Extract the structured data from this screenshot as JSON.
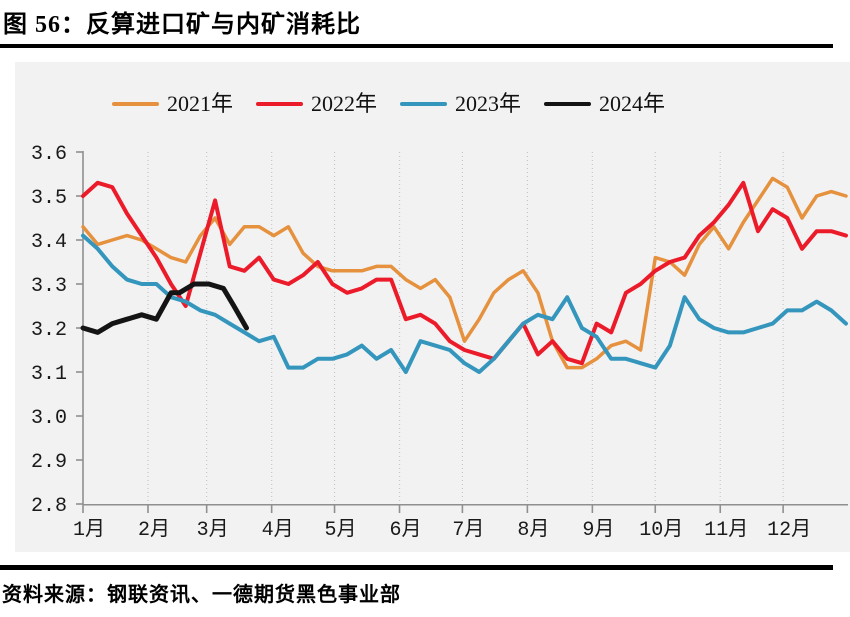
{
  "figure": {
    "title": "图 56：反算进口矿与内矿消耗比",
    "source": "资料来源：钢联资讯、一德期货黑色事业部"
  },
  "chart_data": {
    "type": "line",
    "title": "反算进口矿与内矿消耗比",
    "xlabel": "",
    "ylabel": "",
    "ylim": [
      2.8,
      3.6
    ],
    "y_ticks": [
      "3.6",
      "3.5",
      "3.4",
      "3.3",
      "3.2",
      "3.1",
      "3.0",
      "2.9",
      "2.8"
    ],
    "x_tick_labels": [
      "1月",
      "2月",
      "3月",
      "4月",
      "5月",
      "6月",
      "7月",
      "8月",
      "9月",
      "10月",
      "11月",
      "12月"
    ],
    "month_start_days": [
      0,
      31,
      59,
      90,
      120,
      151,
      181,
      212,
      243,
      273,
      304,
      334
    ],
    "x_range_days": [
      0,
      365
    ],
    "grid": "vertical-dotted",
    "legend_position": "top",
    "layout": {
      "panel_bg": "#f2f2f3",
      "axis_color": "#8f8f8f",
      "grid_color": "#c6c6c6",
      "tick_text_color": "#1a1a1a"
    },
    "series": [
      {
        "name": "2021年",
        "color": "#E5913E",
        "width": 3.5,
        "step_days": 7,
        "values": [
          3.43,
          3.39,
          3.4,
          3.41,
          3.4,
          3.38,
          3.36,
          3.35,
          3.41,
          3.45,
          3.39,
          3.43,
          3.43,
          3.41,
          3.43,
          3.37,
          3.34,
          3.33,
          3.33,
          3.33,
          3.34,
          3.34,
          3.31,
          3.29,
          3.31,
          3.27,
          3.17,
          3.22,
          3.28,
          3.31,
          3.33,
          3.28,
          3.17,
          3.11,
          3.11,
          3.13,
          3.16,
          3.17,
          3.15,
          3.36,
          3.35,
          3.32,
          3.39,
          3.43,
          3.38,
          3.44,
          3.49,
          3.54,
          3.52,
          3.45,
          3.5,
          3.51,
          3.5
        ]
      },
      {
        "name": "2022年",
        "color": "#EC1B2A",
        "width": 4,
        "step_days": 7,
        "values": [
          3.5,
          3.53,
          3.52,
          3.46,
          3.41,
          3.36,
          3.3,
          3.25,
          3.37,
          3.49,
          3.34,
          3.33,
          3.36,
          3.31,
          3.3,
          3.32,
          3.35,
          3.3,
          3.28,
          3.29,
          3.31,
          3.31,
          3.22,
          3.23,
          3.21,
          3.17,
          3.15,
          3.14,
          3.13,
          3.17,
          3.21,
          3.14,
          3.17,
          3.13,
          3.12,
          3.21,
          3.19,
          3.28,
          3.3,
          3.33,
          3.35,
          3.36,
          3.41,
          3.44,
          3.48,
          3.53,
          3.42,
          3.47,
          3.45,
          3.38,
          3.42,
          3.42,
          3.41
        ]
      },
      {
        "name": "2023年",
        "color": "#3496BC",
        "width": 4,
        "step_days": 7,
        "values": [
          3.41,
          3.38,
          3.34,
          3.31,
          3.3,
          3.3,
          3.27,
          3.26,
          3.24,
          3.23,
          3.21,
          3.19,
          3.17,
          3.18,
          3.11,
          3.11,
          3.13,
          3.13,
          3.14,
          3.16,
          3.13,
          3.15,
          3.1,
          3.17,
          3.16,
          3.15,
          3.12,
          3.1,
          3.13,
          3.17,
          3.21,
          3.23,
          3.22,
          3.27,
          3.2,
          3.18,
          3.13,
          3.13,
          3.12,
          3.11,
          3.16,
          3.27,
          3.22,
          3.2,
          3.19,
          3.19,
          3.2,
          3.21,
          3.24,
          3.24,
          3.26,
          3.24,
          3.21
        ]
      },
      {
        "name": "2024年",
        "color": "#141414",
        "width": 5,
        "days": [
          0,
          7,
          14,
          21,
          28,
          35,
          42,
          46,
          53,
          60,
          67,
          72,
          78
        ],
        "values": [
          3.2,
          3.19,
          3.21,
          3.22,
          3.23,
          3.22,
          3.28,
          3.28,
          3.3,
          3.3,
          3.29,
          3.25,
          3.2
        ]
      }
    ]
  }
}
